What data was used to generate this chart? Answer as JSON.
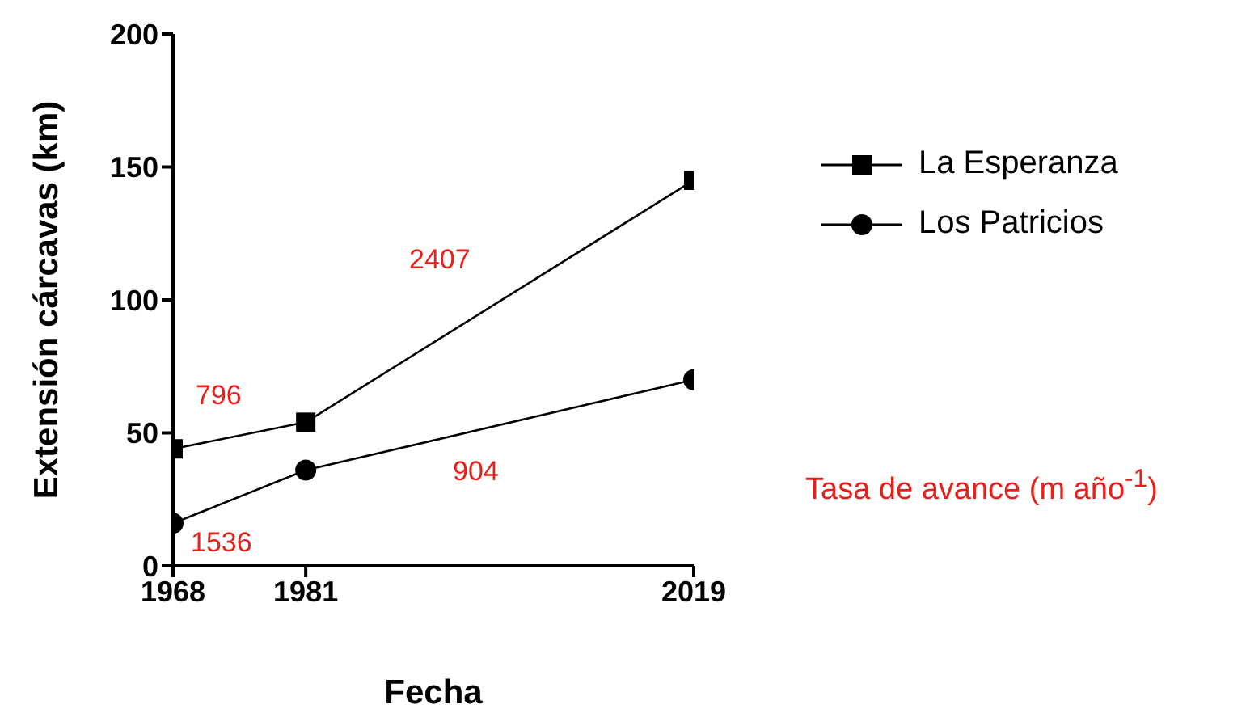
{
  "chart_data": {
    "type": "line",
    "xlabel": "Fecha",
    "ylabel": "Extensión cárcavas (km)",
    "xlim": [
      1968,
      2019
    ],
    "xticks": [
      1968,
      1981,
      2019
    ],
    "ylim": [
      0,
      200
    ],
    "yticks": [
      0,
      50,
      100,
      150,
      200
    ],
    "x": [
      1968,
      1981,
      2019
    ],
    "series": [
      {
        "name": "La Esperanza",
        "color": "#000000",
        "marker": "square",
        "values": [
          44,
          54,
          145
        ]
      },
      {
        "name": "Los Patricios",
        "color": "#000000",
        "marker": "circle",
        "values": [
          16,
          36,
          70
        ]
      }
    ],
    "annotations": [
      "796",
      "1536",
      "2407",
      "904",
      "Tasa de avance (m año$^{-1}$)"
    ],
    "grid": false,
    "legend": "right",
    "line_style": "solid"
  }
}
